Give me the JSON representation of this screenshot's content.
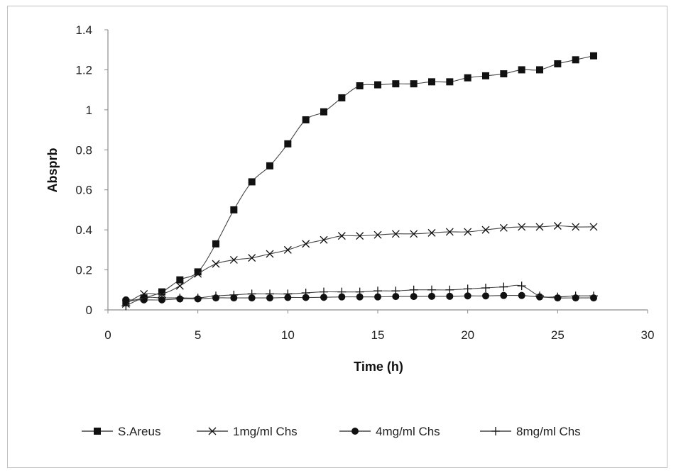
{
  "chart_data": {
    "type": "line",
    "title": "",
    "xlabel": "Time (h)",
    "ylabel": "Absprb",
    "xlim": [
      0,
      30
    ],
    "ylim": [
      0,
      1.4
    ],
    "xticks": [
      "0",
      "5",
      "10",
      "15",
      "20",
      "25",
      "30"
    ],
    "yticks": [
      "0",
      "0.2",
      "0.4",
      "0.6",
      "0.8",
      "1",
      "1.2",
      "1.4"
    ],
    "grid": false,
    "legend_position": "bottom",
    "x": [
      1,
      2,
      3,
      4,
      5,
      6,
      7,
      8,
      9,
      10,
      11,
      12,
      13,
      14,
      15,
      16,
      17,
      18,
      19,
      20,
      21,
      22,
      23,
      24,
      25,
      26,
      27
    ],
    "series": [
      {
        "name": "S.Areus",
        "marker": "square",
        "values": [
          0.04,
          0.06,
          0.09,
          0.15,
          0.19,
          0.33,
          0.5,
          0.64,
          0.72,
          0.83,
          0.95,
          0.99,
          1.06,
          1.12,
          1.125,
          1.13,
          1.13,
          1.14,
          1.14,
          1.16,
          1.17,
          1.18,
          1.2,
          1.2,
          1.23,
          1.25,
          1.27
        ]
      },
      {
        "name": "1mg/ml Chs",
        "marker": "x",
        "values": [
          0.03,
          0.08,
          0.08,
          0.12,
          0.18,
          0.23,
          0.25,
          0.26,
          0.28,
          0.3,
          0.33,
          0.35,
          0.37,
          0.37,
          0.375,
          0.38,
          0.38,
          0.385,
          0.39,
          0.39,
          0.4,
          0.41,
          0.415,
          0.415,
          0.42,
          0.415,
          0.415
        ]
      },
      {
        "name": "4mg/ml Chs",
        "marker": "circle",
        "values": [
          0.05,
          0.05,
          0.05,
          0.055,
          0.055,
          0.06,
          0.06,
          0.06,
          0.06,
          0.062,
          0.062,
          0.063,
          0.065,
          0.065,
          0.065,
          0.067,
          0.067,
          0.068,
          0.068,
          0.07,
          0.07,
          0.072,
          0.072,
          0.065,
          0.06,
          0.06,
          0.06
        ]
      },
      {
        "name": "8mg/ml Chs",
        "marker": "plus",
        "values": [
          0.02,
          0.06,
          0.06,
          0.06,
          0.06,
          0.07,
          0.075,
          0.08,
          0.08,
          0.08,
          0.085,
          0.09,
          0.09,
          0.09,
          0.095,
          0.095,
          0.1,
          0.1,
          0.1,
          0.105,
          0.11,
          0.115,
          0.12,
          0.07,
          0.065,
          0.07,
          0.07
        ]
      }
    ]
  }
}
